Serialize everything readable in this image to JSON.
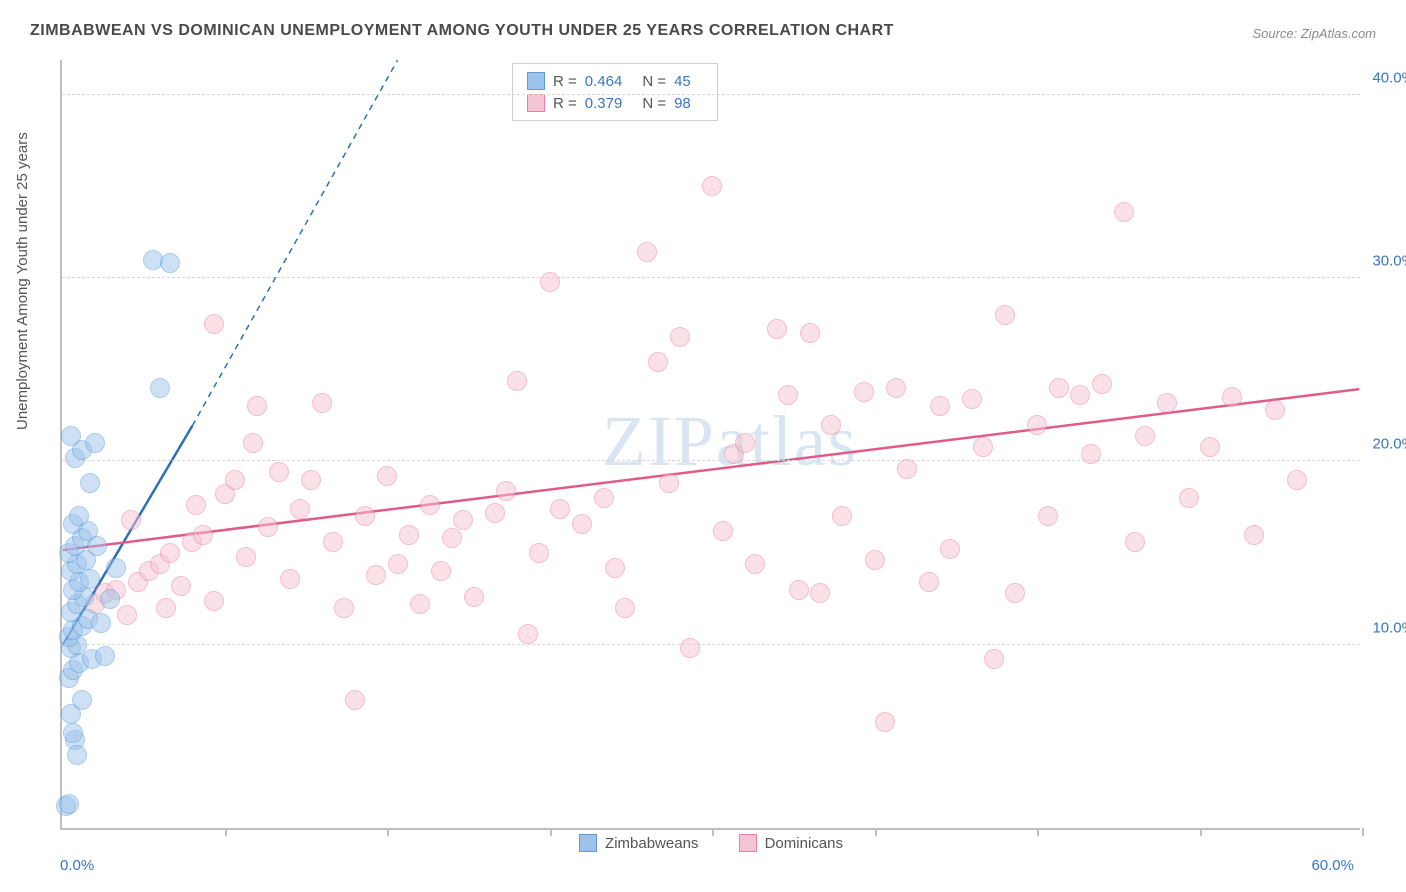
{
  "title": "ZIMBABWEAN VS DOMINICAN UNEMPLOYMENT AMONG YOUTH UNDER 25 YEARS CORRELATION CHART",
  "source_label": "Source: ZipAtlas.com",
  "watermark": "ZIPatlas",
  "ylabel": "Unemployment Among Youth under 25 years",
  "chart": {
    "type": "scatter",
    "xlim": [
      0,
      60
    ],
    "ylim": [
      0,
      42
    ],
    "xtick_positions": [
      0,
      7.5,
      15,
      22.5,
      30,
      37.5,
      45,
      52.5,
      60
    ],
    "xaxis_min_label": "0.0%",
    "xaxis_max_label": "60.0%",
    "ytick_labels": [
      {
        "v": 10,
        "label": "10.0%"
      },
      {
        "v": 20,
        "label": "20.0%"
      },
      {
        "v": 30,
        "label": "30.0%"
      },
      {
        "v": 40,
        "label": "40.0%"
      }
    ],
    "grid_color": "#d8d8d8",
    "background_color": "#ffffff",
    "marker_radius": 10,
    "marker_opacity": 0.5,
    "series": {
      "zimbabweans": {
        "label": "Zimbabweans",
        "color_fill": "#9cc3eb",
        "color_stroke": "#5a9bd8",
        "R": "0.464",
        "N": "45",
        "trend": {
          "x1": 0,
          "y1": 10,
          "x2": 6,
          "y2": 22,
          "dash_to_x": 15.5,
          "dash_to_y": 42,
          "color": "#2f6fb5",
          "width": 2.5
        },
        "points": [
          [
            0.2,
            1.2
          ],
          [
            0.3,
            1.3
          ],
          [
            0.6,
            4.8
          ],
          [
            0.5,
            5.2
          ],
          [
            0.7,
            4.0
          ],
          [
            0.4,
            6.2
          ],
          [
            0.9,
            7.0
          ],
          [
            0.3,
            8.2
          ],
          [
            0.5,
            8.6
          ],
          [
            0.8,
            9.0
          ],
          [
            1.4,
            9.2
          ],
          [
            0.4,
            9.8
          ],
          [
            0.7,
            10.0
          ],
          [
            0.3,
            10.4
          ],
          [
            0.5,
            10.8
          ],
          [
            0.9,
            11.0
          ],
          [
            1.2,
            11.4
          ],
          [
            0.4,
            11.8
          ],
          [
            0.7,
            12.2
          ],
          [
            1.0,
            12.6
          ],
          [
            0.5,
            13.0
          ],
          [
            0.8,
            13.4
          ],
          [
            1.3,
            13.6
          ],
          [
            0.4,
            14.0
          ],
          [
            0.7,
            14.4
          ],
          [
            1.1,
            14.6
          ],
          [
            0.3,
            15.0
          ],
          [
            0.6,
            15.4
          ],
          [
            0.9,
            15.8
          ],
          [
            1.2,
            16.2
          ],
          [
            0.5,
            16.6
          ],
          [
            0.8,
            17.0
          ],
          [
            0.6,
            20.2
          ],
          [
            0.9,
            20.6
          ],
          [
            1.5,
            21.0
          ],
          [
            0.4,
            21.4
          ],
          [
            2.2,
            12.5
          ],
          [
            1.8,
            11.2
          ],
          [
            2.0,
            9.4
          ],
          [
            2.5,
            14.2
          ],
          [
            4.5,
            24.0
          ],
          [
            4.2,
            31.0
          ],
          [
            5.0,
            30.8
          ],
          [
            1.6,
            15.4
          ],
          [
            1.3,
            18.8
          ]
        ]
      },
      "dominicans": {
        "label": "Dominicans",
        "color_fill": "#f6c5d3",
        "color_stroke": "#e87fa5",
        "R": "0.379",
        "N": "98",
        "trend": {
          "x1": 0,
          "y1": 15.2,
          "x2": 60,
          "y2": 24.0,
          "color": "#e05b88",
          "width": 2.5
        },
        "points": [
          [
            1.5,
            12.2
          ],
          [
            2.0,
            12.8
          ],
          [
            2.5,
            13.0
          ],
          [
            3.0,
            11.6
          ],
          [
            3.5,
            13.4
          ],
          [
            4.0,
            14.0
          ],
          [
            4.5,
            14.4
          ],
          [
            5.0,
            15.0
          ],
          [
            5.5,
            13.2
          ],
          [
            6.0,
            15.6
          ],
          [
            6.5,
            16.0
          ],
          [
            7.0,
            12.4
          ],
          [
            7.5,
            18.2
          ],
          [
            7.0,
            27.5
          ],
          [
            8.0,
            19.0
          ],
          [
            8.5,
            14.8
          ],
          [
            9.0,
            23.0
          ],
          [
            9.5,
            16.4
          ],
          [
            10.0,
            19.4
          ],
          [
            10.5,
            13.6
          ],
          [
            11.0,
            17.4
          ],
          [
            11.5,
            19.0
          ],
          [
            12.0,
            23.2
          ],
          [
            12.5,
            15.6
          ],
          [
            13.0,
            12.0
          ],
          [
            13.5,
            7.0
          ],
          [
            14.0,
            17.0
          ],
          [
            14.5,
            13.8
          ],
          [
            15.0,
            19.2
          ],
          [
            15.5,
            14.4
          ],
          [
            16.0,
            16.0
          ],
          [
            16.5,
            12.2
          ],
          [
            17.0,
            17.6
          ],
          [
            17.5,
            14.0
          ],
          [
            18.0,
            15.8
          ],
          [
            18.5,
            16.8
          ],
          [
            19.0,
            12.6
          ],
          [
            20.0,
            17.2
          ],
          [
            20.5,
            18.4
          ],
          [
            21.0,
            24.4
          ],
          [
            21.5,
            10.6
          ],
          [
            22.0,
            15.0
          ],
          [
            22.5,
            29.8
          ],
          [
            23.0,
            17.4
          ],
          [
            24.0,
            16.6
          ],
          [
            25.0,
            18.0
          ],
          [
            25.5,
            14.2
          ],
          [
            26.0,
            12.0
          ],
          [
            27.0,
            31.4
          ],
          [
            27.5,
            25.4
          ],
          [
            28.0,
            18.8
          ],
          [
            28.5,
            26.8
          ],
          [
            29.0,
            9.8
          ],
          [
            30.0,
            35.0
          ],
          [
            30.5,
            16.2
          ],
          [
            31.0,
            20.4
          ],
          [
            31.5,
            21.0
          ],
          [
            32.0,
            14.4
          ],
          [
            33.0,
            27.2
          ],
          [
            33.5,
            23.6
          ],
          [
            34.0,
            13.0
          ],
          [
            34.5,
            27.0
          ],
          [
            35.0,
            12.8
          ],
          [
            35.5,
            22.0
          ],
          [
            36.0,
            17.0
          ],
          [
            37.0,
            23.8
          ],
          [
            37.5,
            14.6
          ],
          [
            38.0,
            5.8
          ],
          [
            38.5,
            24.0
          ],
          [
            39.0,
            19.6
          ],
          [
            40.0,
            13.4
          ],
          [
            40.5,
            23.0
          ],
          [
            41.0,
            15.2
          ],
          [
            42.0,
            23.4
          ],
          [
            42.5,
            20.8
          ],
          [
            43.0,
            9.2
          ],
          [
            43.5,
            28.0
          ],
          [
            44.0,
            12.8
          ],
          [
            45.0,
            22.0
          ],
          [
            45.5,
            17.0
          ],
          [
            46.0,
            24.0
          ],
          [
            47.0,
            23.6
          ],
          [
            47.5,
            20.4
          ],
          [
            48.0,
            24.2
          ],
          [
            49.0,
            33.6
          ],
          [
            49.5,
            15.6
          ],
          [
            50.0,
            21.4
          ],
          [
            51.0,
            23.2
          ],
          [
            52.0,
            18.0
          ],
          [
            53.0,
            20.8
          ],
          [
            54.0,
            23.5
          ],
          [
            55.0,
            16.0
          ],
          [
            56.0,
            22.8
          ],
          [
            57.0,
            19.0
          ],
          [
            3.2,
            16.8
          ],
          [
            4.8,
            12.0
          ],
          [
            6.2,
            17.6
          ],
          [
            8.8,
            21.0
          ]
        ]
      }
    }
  },
  "legend_stats": [
    {
      "series": "zimbabweans",
      "R_label": "R =",
      "N_label": "N ="
    },
    {
      "series": "dominicans",
      "R_label": "R =",
      "N_label": "N ="
    }
  ]
}
